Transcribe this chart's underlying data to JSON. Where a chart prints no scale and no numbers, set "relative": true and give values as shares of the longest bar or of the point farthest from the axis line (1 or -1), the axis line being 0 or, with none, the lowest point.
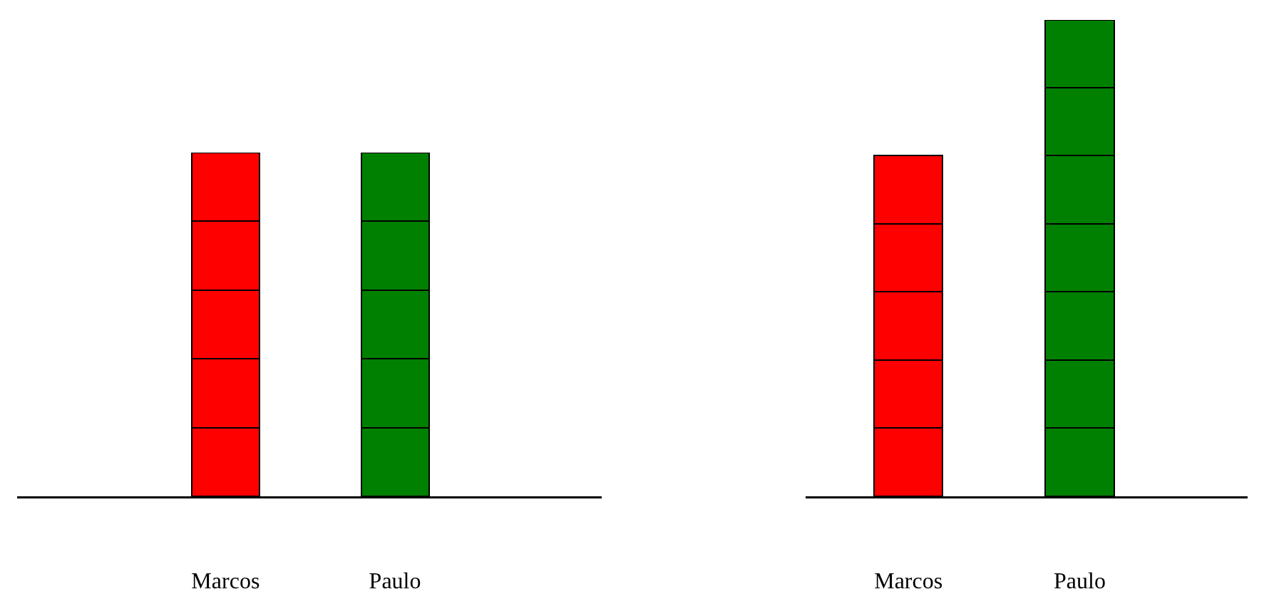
{
  "chart_data": [
    {
      "type": "bar",
      "stacked": true,
      "relative": true,
      "categories": [
        "Marcos",
        "Paulo"
      ],
      "series": [
        {
          "colors": [
            "#ff0000",
            "#008000"
          ],
          "values": [
            0.2,
            0.2
          ]
        },
        {
          "colors": [
            "#ff0000",
            "#008000"
          ],
          "values": [
            0.2,
            0.2
          ]
        },
        {
          "colors": [
            "#ff0000",
            "#008000"
          ],
          "values": [
            0.2,
            0.2
          ]
        },
        {
          "colors": [
            "#ff0000",
            "#008000"
          ],
          "values": [
            0.2,
            0.2
          ]
        },
        {
          "colors": [
            "#ff0000",
            "#008000"
          ],
          "values": [
            0.2,
            0.2
          ]
        }
      ]
    },
    {
      "type": "bar",
      "stacked": true,
      "relative": true,
      "categories": [
        "Marcos",
        "Paulo"
      ],
      "series": [
        {
          "colors": [
            "#ff0000",
            "#008000"
          ],
          "values": [
            0.143,
            0.143
          ]
        },
        {
          "colors": [
            "#ff0000",
            "#008000"
          ],
          "values": [
            0.143,
            0.143
          ]
        },
        {
          "colors": [
            "#ff0000",
            "#008000"
          ],
          "values": [
            0.143,
            0.143
          ]
        },
        {
          "colors": [
            "#ff0000",
            "#008000"
          ],
          "values": [
            0.143,
            0.143
          ]
        },
        {
          "colors": [
            "#ff0000",
            "#008000"
          ],
          "values": [
            0.143,
            0.143
          ]
        },
        {
          "colors": [
            "#ff0000",
            "#008000"
          ],
          "values": [
            null,
            0.143
          ]
        },
        {
          "colors": [
            "#ff0000",
            "#008000"
          ],
          "values": [
            null,
            0.142
          ]
        }
      ]
    }
  ]
}
